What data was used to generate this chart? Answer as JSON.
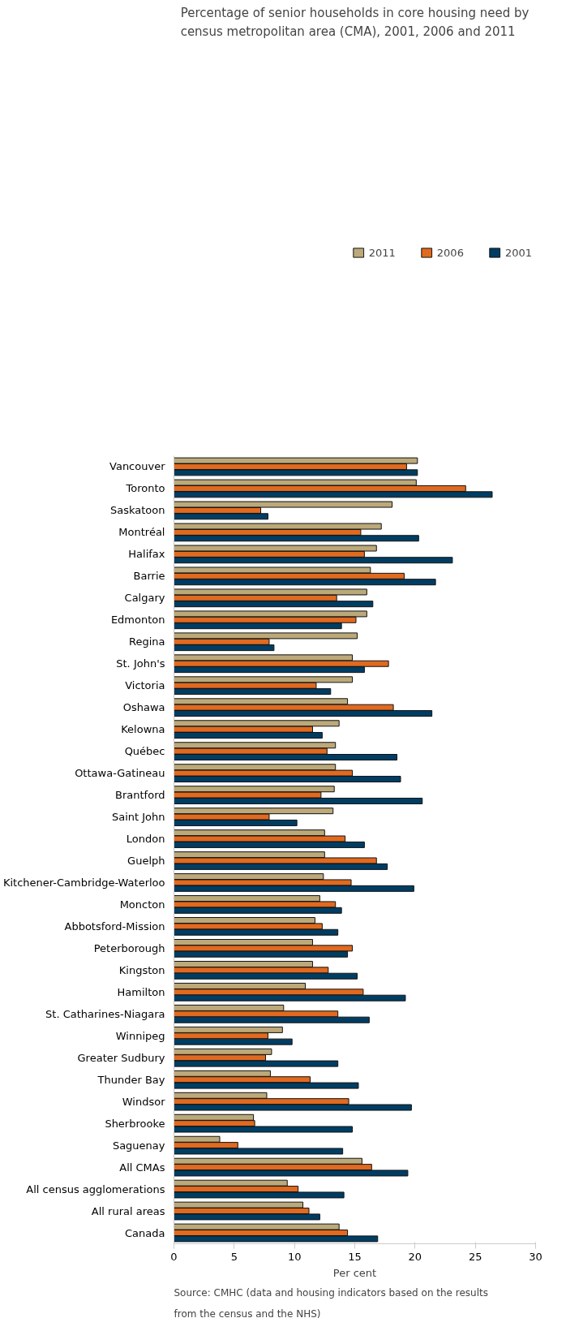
{
  "chart_data": {
    "type": "bar",
    "orientation": "horizontal",
    "title": "Percentage of senior households in core housing need by census metropolitan area (CMA), 2001, 2006 and 2011",
    "xlabel": "Per cent",
    "categories": [
      "Vancouver",
      "Toronto",
      "Saskatoon",
      "Montréal",
      "Halifax",
      "Barrie",
      "Calgary",
      "Edmonton",
      "Regina",
      "St. John's",
      "Victoria",
      "Oshawa",
      "Kelowna",
      "Québec",
      "Ottawa-Gatineau",
      "Brantford",
      "Saint John",
      "London",
      "Guelph",
      "Kitchener-Cambridge-Waterloo",
      "Moncton",
      "Abbotsford-Mission",
      "Peterborough",
      "Kingston",
      "Hamilton",
      "St. Catharines-Niagara",
      "Winnipeg",
      "Greater Sudbury",
      "Thunder Bay",
      "Windsor",
      "Sherbrooke",
      "Saguenay",
      "All CMAs",
      "All census agglomerations",
      "All rural areas",
      "Canada"
    ],
    "series": [
      {
        "name": "2011",
        "color": "#bca97a",
        "values": [
          20.2,
          20.1,
          18.1,
          17.2,
          16.8,
          16.3,
          16.0,
          16.0,
          15.2,
          14.8,
          14.8,
          14.4,
          13.7,
          13.4,
          13.4,
          13.3,
          13.2,
          12.5,
          12.5,
          12.4,
          12.1,
          11.7,
          11.5,
          11.5,
          10.9,
          9.1,
          9.0,
          8.1,
          8.0,
          7.7,
          6.6,
          3.8,
          15.6,
          9.4,
          10.7,
          13.7
        ]
      },
      {
        "name": "2006",
        "color": "#e06a20",
        "values": [
          19.3,
          24.2,
          7.2,
          15.5,
          15.8,
          19.1,
          13.5,
          15.1,
          7.9,
          17.8,
          11.8,
          18.2,
          11.5,
          12.7,
          14.8,
          12.2,
          7.9,
          14.2,
          16.8,
          14.7,
          13.4,
          12.3,
          14.8,
          12.8,
          15.7,
          13.6,
          7.8,
          7.6,
          11.3,
          14.5,
          6.7,
          5.3,
          16.4,
          10.3,
          11.2,
          14.4
        ]
      },
      {
        "name": "2001",
        "color": "#003d63",
        "values": [
          20.2,
          26.4,
          7.8,
          20.3,
          23.1,
          21.7,
          16.5,
          13.9,
          8.3,
          15.8,
          13.0,
          21.4,
          12.3,
          18.5,
          18.8,
          20.6,
          10.2,
          15.8,
          17.7,
          19.9,
          13.9,
          13.6,
          14.4,
          15.2,
          19.2,
          16.2,
          9.8,
          13.6,
          15.3,
          19.7,
          14.8,
          14.0,
          19.4,
          14.1,
          12.1,
          16.9
        ]
      }
    ],
    "xlim": [
      0,
      30
    ],
    "xticks": [
      0,
      5,
      10,
      15,
      20,
      25,
      30
    ],
    "grid": false,
    "legend": "top",
    "annotations": [
      "Source: CMHC (data and housing indicators based on the results from the census and the NHS)"
    ]
  }
}
